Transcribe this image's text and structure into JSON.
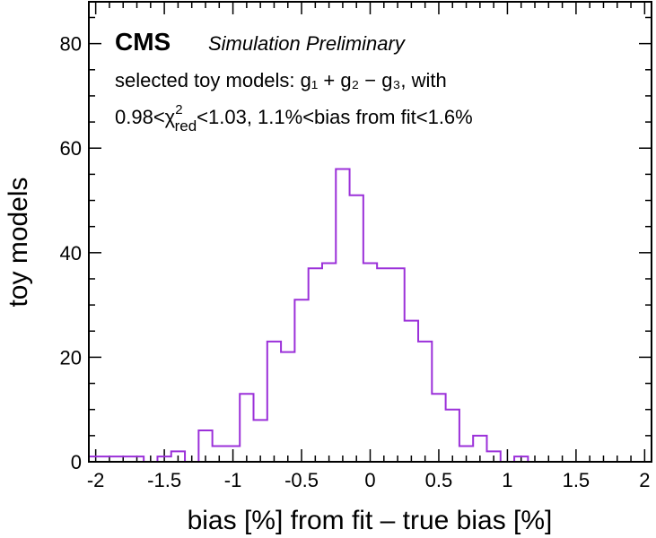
{
  "chart_data": {
    "type": "histogram",
    "title": "",
    "experiment_label": "CMS",
    "experiment_sublabel": "Simulation Preliminary",
    "annotations": {
      "line1": "selected toy models: g₁ + g₂ − g₃, with",
      "line2_prefix": "0.98<",
      "line2_chi": "χ",
      "line2_sup": "2",
      "line2_sub": "red",
      "line2_suffix": "<1.03, 1.1%<bias from fit<1.6%"
    },
    "xlabel": "bias [%] from fit – true bias [%]",
    "ylabel": "toy models",
    "xlim": [
      -2.05,
      2.05
    ],
    "ylim": [
      0,
      88
    ],
    "x_ticks": [
      -2,
      -1.5,
      -1,
      -0.5,
      0,
      0.5,
      1,
      1.5,
      2
    ],
    "x_tick_labels": [
      "-2",
      "-1.5",
      "-1",
      "-0.5",
      "0",
      "0.5",
      "1",
      "1.5",
      "2"
    ],
    "y_ticks": [
      0,
      20,
      40,
      60,
      80
    ],
    "y_tick_labels": [
      "0",
      "20",
      "40",
      "60",
      "80"
    ],
    "line_color": "#9b30d9",
    "series": [
      {
        "bin_edges": [
          -2.05,
          -1.65,
          -1.55,
          -1.45,
          -1.35,
          -1.25,
          -1.15,
          -1.05,
          -0.95,
          -0.85,
          -0.75,
          -0.65,
          -0.55,
          -0.45,
          -0.35,
          -0.25,
          -0.15,
          -0.05,
          0.05,
          0.15,
          0.25,
          0.35,
          0.45,
          0.55,
          0.65,
          0.75,
          0.85,
          0.95,
          1.05,
          1.15,
          1.25
        ],
        "counts": [
          1,
          0,
          1,
          2,
          0,
          6,
          3,
          3,
          13,
          8,
          23,
          21,
          31,
          37,
          38,
          56,
          51,
          38,
          37,
          37,
          27,
          23,
          13,
          10,
          3,
          5,
          2,
          0,
          1,
          0
        ]
      }
    ]
  }
}
